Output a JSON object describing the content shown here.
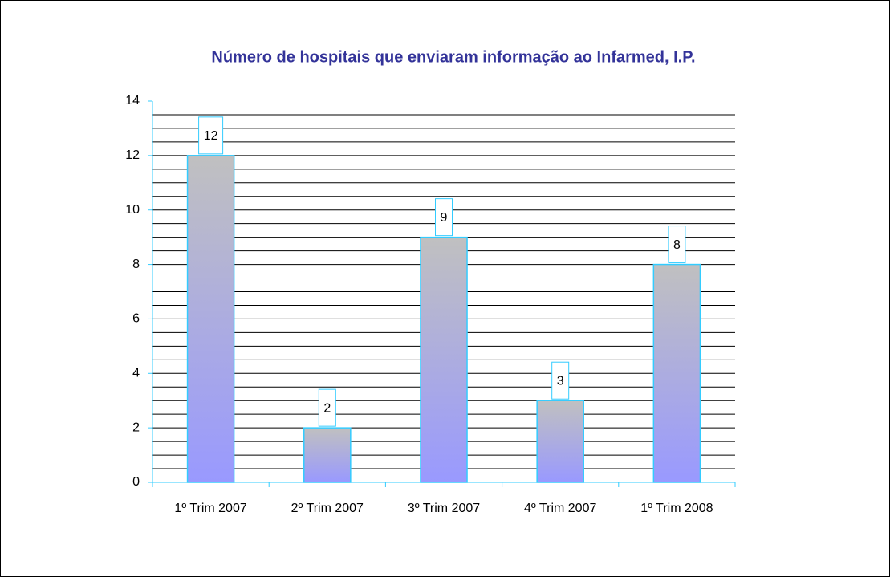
{
  "chart_data": {
    "type": "bar",
    "title": "Número de hospitais que enviaram informação ao Infarmed, I.P.",
    "categories": [
      "1º Trim 2007",
      "2º Trim 2007",
      "3º Trim 2007",
      "4º Trim 2007",
      "1º Trim 2008"
    ],
    "values": [
      12,
      2,
      9,
      3,
      8
    ],
    "color_top": "#c0c0c0",
    "color_bottom": "#9999ff",
    "edge_color": "#33ccff",
    "ylim": [
      0,
      14
    ],
    "yticks": [
      0,
      2,
      4,
      6,
      8,
      10,
      12,
      14
    ],
    "grid": true,
    "minor_grid_step": 0.5,
    "data_labels": true
  }
}
